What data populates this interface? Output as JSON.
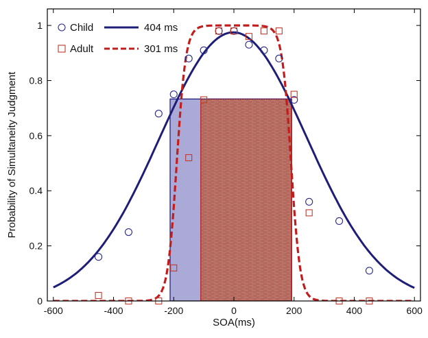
{
  "chart_data": {
    "type": "scatter",
    "title": "",
    "xlabel": "SOA(ms)",
    "ylabel": "Probability of Simultaneity Judgment",
    "xlim": [
      -620,
      620
    ],
    "ylim": [
      0,
      1.06
    ],
    "xticks": [
      -600,
      -400,
      -200,
      0,
      200,
      400,
      600
    ],
    "yticks": [
      0,
      0.2,
      0.4,
      0.6,
      0.8,
      1
    ],
    "x_tick_labels": [
      "-600",
      "-400",
      "-200",
      "0",
      "200",
      "400",
      "600"
    ],
    "y_tick_labels": [
      "0",
      "0.2",
      "0.4",
      "0.6",
      "0.8",
      "1"
    ],
    "legend_position": "top-left",
    "series": [
      {
        "name": "Child",
        "marker": "circle",
        "color": "#2a2a8a",
        "x": [
          -450,
          -350,
          -250,
          -200,
          -150,
          -100,
          -50,
          0,
          50,
          100,
          150,
          200,
          250,
          350,
          450
        ],
        "y": [
          0.16,
          0.25,
          0.68,
          0.75,
          0.88,
          0.91,
          0.98,
          0.98,
          0.93,
          0.91,
          0.88,
          0.73,
          0.36,
          0.29,
          0.11
        ]
      },
      {
        "name": "Adult",
        "marker": "square",
        "color": "#c0392b",
        "x": [
          -450,
          -350,
          -250,
          -200,
          -150,
          -100,
          -50,
          0,
          50,
          100,
          150,
          200,
          250,
          350,
          450
        ],
        "y": [
          0.02,
          0.0,
          0.0,
          0.12,
          0.52,
          0.73,
          0.98,
          0.98,
          0.96,
          0.98,
          0.98,
          0.75,
          0.32,
          0.0,
          0.0
        ]
      }
    ],
    "fits": [
      {
        "name": "Child fit",
        "label": "404 ms",
        "style": "solid",
        "color": "#1e1e78",
        "mu": -2,
        "sigma": 245,
        "amplitude": 0.975
      },
      {
        "name": "Adult fit",
        "label": "301 ms",
        "style": "dashed",
        "color": "#c21d1d",
        "center": 0,
        "half_width": 190,
        "rise": 68,
        "amplitude": 1.0
      }
    ],
    "windows": [
      {
        "name": "Child window",
        "x_start": -212,
        "x_end": 192,
        "height": 0.733,
        "width_ms": 404,
        "color": "#9a9ad6"
      },
      {
        "name": "Adult window",
        "x_start": -110,
        "x_end": 191,
        "height": 0.733,
        "width_ms": 301,
        "color": "#b56a63"
      }
    ]
  }
}
